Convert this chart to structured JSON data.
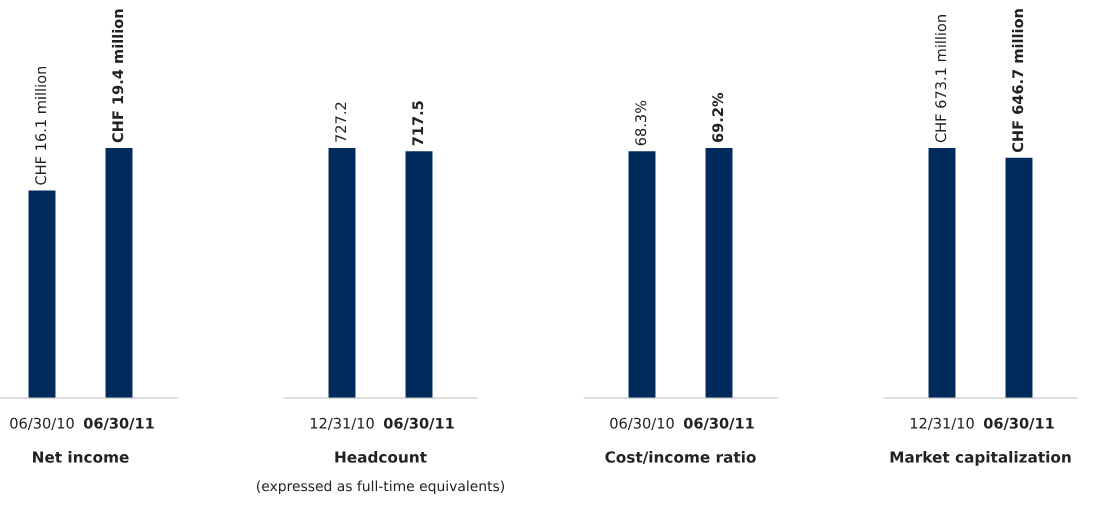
{
  "chart_data": [
    {
      "type": "bar",
      "categories": [
        "06/30/10",
        "06/30/11"
      ],
      "values": [
        16100000,
        19400000
      ],
      "value_labels": [
        "CHF 16.1 million",
        "CHF 19.4 million"
      ],
      "color": "#002b5c",
      "xlabel": "Net income"
    },
    {
      "type": "bar",
      "categories": [
        "12/31/10",
        "06/30/11"
      ],
      "values": [
        727.2,
        717.5
      ],
      "value_labels": [
        "727.2",
        "717.5"
      ],
      "color": "#002b5c",
      "xlabel": "Headcount",
      "annotations": [
        "(expressed as full-time equivalents)"
      ]
    },
    {
      "type": "bar",
      "categories": [
        "06/30/10",
        "06/30/11"
      ],
      "values": [
        68.3,
        69.2
      ],
      "value_labels": [
        "68.3%",
        "69.2%"
      ],
      "color": "#002b5c",
      "xlabel": "Cost/income ratio"
    },
    {
      "type": "bar",
      "categories": [
        "12/31/10",
        "06/30/11"
      ],
      "values": [
        673100000,
        646700000
      ],
      "value_labels": [
        "CHF 673.1 million",
        "CHF 646.7 million"
      ],
      "color": "#002b5c",
      "xlabel": "Market capitalization"
    }
  ]
}
